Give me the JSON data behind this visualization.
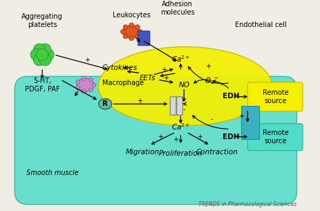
{
  "bg_color": "#f0ede5",
  "endothelial_color": "#f5f000",
  "smooth_muscle_color": "#50ddc8",
  "title_bottom": "TRENDS in Pharmacological Sciences",
  "green_cluster_color": "#44cc44",
  "purple_cell_color": "#cc88cc",
  "leukocyte_color": "#e05820",
  "adhesion_mol_color": "#4455bb",
  "receptor_color": "#66bbaa",
  "edh_bar_color": "#3ab0c0",
  "labels": {
    "aggregating_platelets": "Aggregating\nplatelets",
    "leukocytes": "Leukocytes",
    "adhesion_molecules": "Adhesion\nmolecules",
    "endothelial_cell": "Endothelial cell",
    "cytokines": "Cytokines",
    "eets": "EETs",
    "no": "NO",
    "o2minus": "O₂⁻",
    "edh_endo": "EDH",
    "remote_source_endo": "Remote\nsource",
    "sht_pdgf_paf": "5-HT,\nPDGF, PAF",
    "macrophage": "Macrophage",
    "smooth_muscle": "Smooth muscle",
    "receptor": "R",
    "edh_sm": "EDH",
    "remote_source_sm": "Remote\nsource",
    "migration": "Migration",
    "proliferation": "Proliferation",
    "contraction": "Contraction"
  }
}
